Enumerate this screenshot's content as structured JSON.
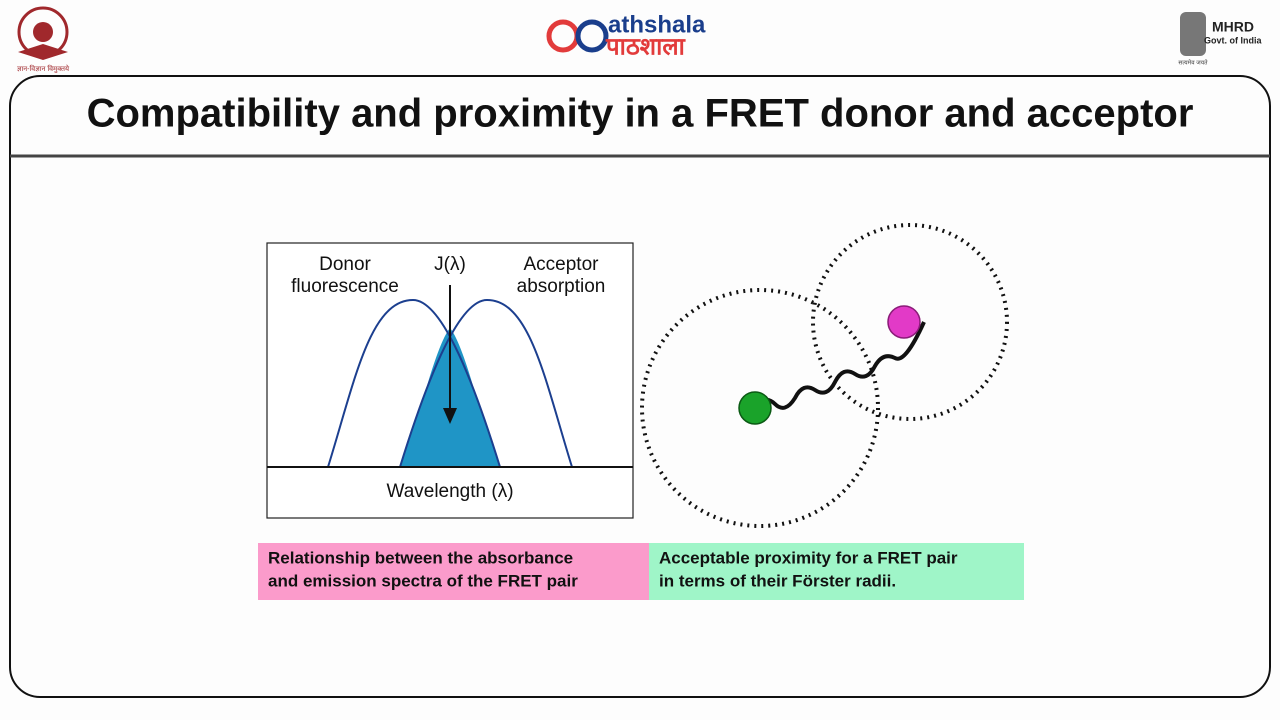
{
  "header": {
    "left_logo_motto": "ज्ञान-विज्ञान विमुक्तये",
    "brand_latin": "athshala",
    "brand_devanagari": "पाठशाला",
    "right_logo_title": "MHRD",
    "right_logo_subtitle": "Govt. of India",
    "right_logo_motto": "सत्यमेव जयते"
  },
  "title": "Compatibility and proximity in a FRET donor and acceptor",
  "spectra_figure": {
    "left_label_line1": "Donor",
    "left_label_line2": "fluorescence",
    "center_label": "J(λ)",
    "right_label_line1": "Acceptor",
    "right_label_line2": "absorption",
    "x_axis_label": "Wavelength (λ)"
  },
  "captions": [
    {
      "line1": "Relationship between the absorbance",
      "line2": "and emission spectra of the FRET pair"
    },
    {
      "line1": "Acceptable proximity for a FRET pair",
      "line2": "in terms of their Förster radii."
    }
  ]
}
